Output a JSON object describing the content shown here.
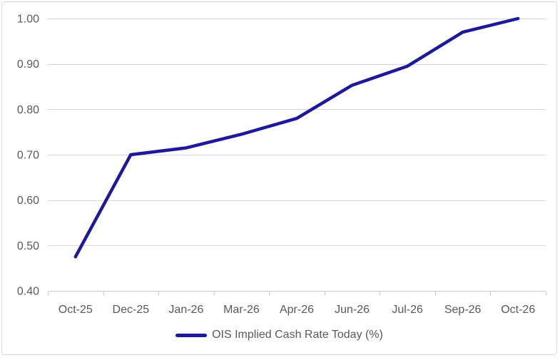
{
  "chart_data": {
    "type": "line",
    "title": "",
    "xlabel": "",
    "ylabel": "",
    "categories": [
      "Oct-25",
      "Dec-25",
      "Jan-26",
      "Mar-26",
      "Apr-26",
      "Jun-26",
      "Jul-26",
      "Sep-26",
      "Oct-26"
    ],
    "series": [
      {
        "name": "OIS Implied Cash Rate Today (%)",
        "values": [
          0.475,
          0.7,
          0.715,
          0.745,
          0.78,
          0.853,
          0.895,
          0.97,
          1.0
        ]
      }
    ],
    "ylim": [
      0.4,
      1.0
    ],
    "yticks": [
      0.4,
      0.5,
      0.6,
      0.7,
      0.8,
      0.9,
      1.0
    ],
    "ytick_decimals": 2,
    "grid": "horizontal",
    "legend_position": "bottom",
    "colors": {
      "line": "#1c1a9b",
      "gridline": "#d9d9d9",
      "axis_line": "#c9c9c9",
      "tick": "#c9c9c9",
      "label_text": "#595959",
      "background": "#ffffff",
      "border": "#d9d9d9"
    }
  }
}
